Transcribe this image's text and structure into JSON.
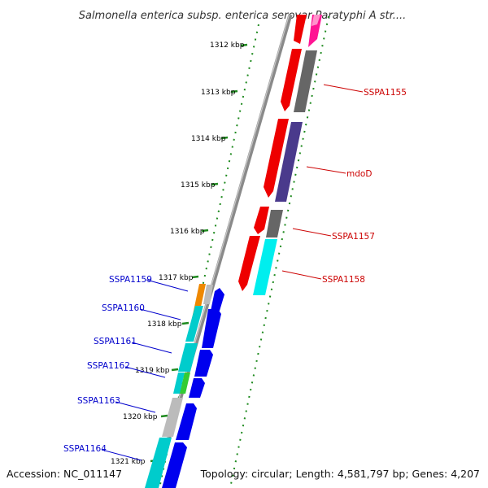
{
  "title": "Salmonella enterica subsp. enterica serovar Paratyphi A str....",
  "footer": {
    "accession": "Accession: NC_011147",
    "topology": "Topology: circular; Length: 4,581,797 bp; Genes: 4,207"
  },
  "colors": {
    "backbone": "#8a8a8a",
    "tick": "#1e8a1e",
    "label_right": "#cc0000",
    "label_left": "#0000cc"
  },
  "ruler_labels": [
    "1312 kbp",
    "1313 kbp",
    "1314 kbp",
    "1315 kbp",
    "1316 kbp",
    "1317 kbp",
    "1318 kbp",
    "1319 kbp",
    "1320 kbp",
    "1321 kbp"
  ],
  "right_genes": [
    {
      "label": "SSPA1155"
    },
    {
      "label": "mdoD"
    },
    {
      "label": "SSPA1157"
    },
    {
      "label": "SSPA1158"
    }
  ],
  "left_genes": [
    {
      "label": "SSPA1159"
    },
    {
      "label": "SSPA1160"
    },
    {
      "label": "SSPA1161"
    },
    {
      "label": "SSPA1162"
    },
    {
      "label": "SSPA1163"
    },
    {
      "label": "SSPA1164"
    }
  ]
}
